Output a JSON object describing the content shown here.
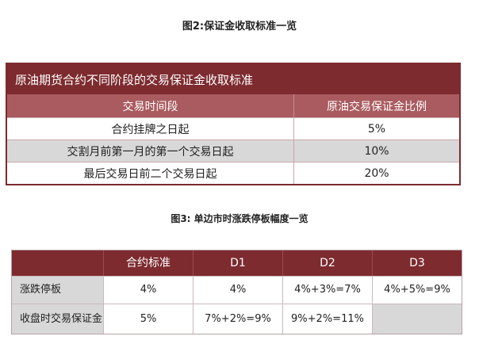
{
  "figure2": {
    "caption": "图2:保证金收取标准一览",
    "title": "原油期货合约不同阶段的交易保证金收取标准",
    "headers": [
      "交易时间段",
      "原油交易保证金比例"
    ],
    "rows": [
      [
        "合约挂牌之日起",
        "5%"
      ],
      [
        "交割月前第一月的第一个交易日起",
        "10%"
      ],
      [
        "最后交易日前二个交易日起",
        "20%"
      ]
    ]
  },
  "figure3": {
    "caption": "图3: 单边市时涨跌停板幅度一览",
    "headers": [
      "",
      "合约标准",
      "D1",
      "D2",
      "D3"
    ],
    "rows": [
      [
        "涨跌停板",
        "4%",
        "4%",
        "4%+3%=7%",
        "4%+5%=9%"
      ],
      [
        "收盘时交易保证金",
        "5%",
        "7%+2%=9%",
        "9%+2%=11%",
        ""
      ]
    ]
  },
  "colors": {
    "header_dark": "#7d2b2f",
    "header_light": "#a95b5f",
    "row_grey": "#d8d8d8"
  }
}
